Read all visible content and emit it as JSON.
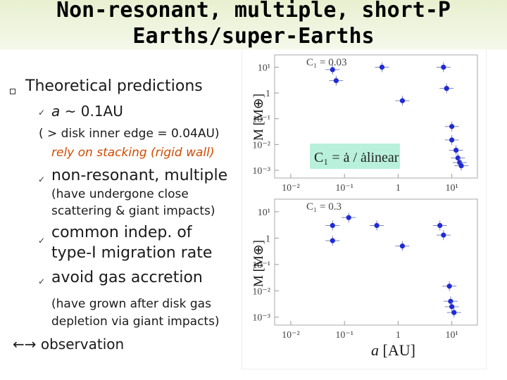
{
  "header": {
    "line1": "Non-resonant, multiple, short-P",
    "line2": "Earths/super-Earths"
  },
  "bullets": {
    "main": "Theoretical predictions",
    "a_label": "a",
    "a_value": "~ 0.1AU",
    "disk_note": "( > disk inner edge = 0.04AU)",
    "stacking": "rely on stacking (rigid wall)",
    "nonres": "non-resonant, multiple",
    "scatter1": "(have undergone close",
    "scatter2": "scattering & giant impacts)",
    "indep1": "common indep. of",
    "indep2": "type-I migration rate",
    "avoid": "avoid gas accretion",
    "grown1": "(have grown after disk gas",
    "grown2": "depletion via giant impacts)",
    "observation": "observation"
  },
  "panel_labels": {
    "ylabel": "M [M⊕]",
    "xlabel_a": "a",
    "xlabel_unit": "[AU]",
    "top_c1": "C₁ = 0.03",
    "bottom_c1": "C₁ = 0.3",
    "formula": "C₁ = ȧ / ȧlinear"
  },
  "colors": {
    "accent": "#d24a00",
    "points": "#1f2bd6",
    "errorbars": "#7b86b5",
    "formula_bg": "#b8f0dc"
  },
  "chart_data": [
    {
      "type": "scatter",
      "title": "C₁ = 0.03",
      "xlabel": "",
      "ylabel": "M [M⊕]",
      "x_scale": "log",
      "y_scale": "log",
      "xlim": [
        0.005,
        30
      ],
      "ylim": [
        0.0005,
        30
      ],
      "x_ticks": [
        "10⁻²",
        "10⁻¹",
        "1",
        "10¹"
      ],
      "y_ticks": [
        "10¹",
        "1",
        "10⁻¹",
        "10⁻²",
        "10⁻³"
      ],
      "points": [
        {
          "x": 0.06,
          "y": 8.0
        },
        {
          "x": 0.07,
          "y": 3.0
        },
        {
          "x": 0.5,
          "y": 10.0
        },
        {
          "x": 1.2,
          "y": 0.5
        },
        {
          "x": 7.0,
          "y": 10.0
        },
        {
          "x": 8.0,
          "y": 1.5
        },
        {
          "x": 10.0,
          "y": 0.05
        },
        {
          "x": 10.0,
          "y": 0.015
        },
        {
          "x": 12.0,
          "y": 0.006
        },
        {
          "x": 13.0,
          "y": 0.003
        },
        {
          "x": 14.0,
          "y": 0.002
        },
        {
          "x": 15.0,
          "y": 0.0015
        }
      ]
    },
    {
      "type": "scatter",
      "title": "C₁ = 0.3",
      "xlabel": "a [AU]",
      "ylabel": "M [M⊕]",
      "x_scale": "log",
      "y_scale": "log",
      "xlim": [
        0.005,
        30
      ],
      "ylim": [
        0.0005,
        30
      ],
      "x_ticks": [
        "10⁻²",
        "10⁻¹",
        "1",
        "10¹"
      ],
      "y_ticks": [
        "10¹",
        "1",
        "10⁻¹",
        "10⁻²",
        "10⁻³"
      ],
      "points": [
        {
          "x": 0.06,
          "y": 3.0
        },
        {
          "x": 0.06,
          "y": 0.8
        },
        {
          "x": 0.12,
          "y": 6.0
        },
        {
          "x": 0.4,
          "y": 3.0
        },
        {
          "x": 1.2,
          "y": 0.5
        },
        {
          "x": 6.0,
          "y": 3.0
        },
        {
          "x": 7.0,
          "y": 1.3
        },
        {
          "x": 9.0,
          "y": 0.015
        },
        {
          "x": 9.5,
          "y": 0.004
        },
        {
          "x": 10.0,
          "y": 0.0025
        },
        {
          "x": 11.0,
          "y": 0.0015
        }
      ]
    }
  ]
}
